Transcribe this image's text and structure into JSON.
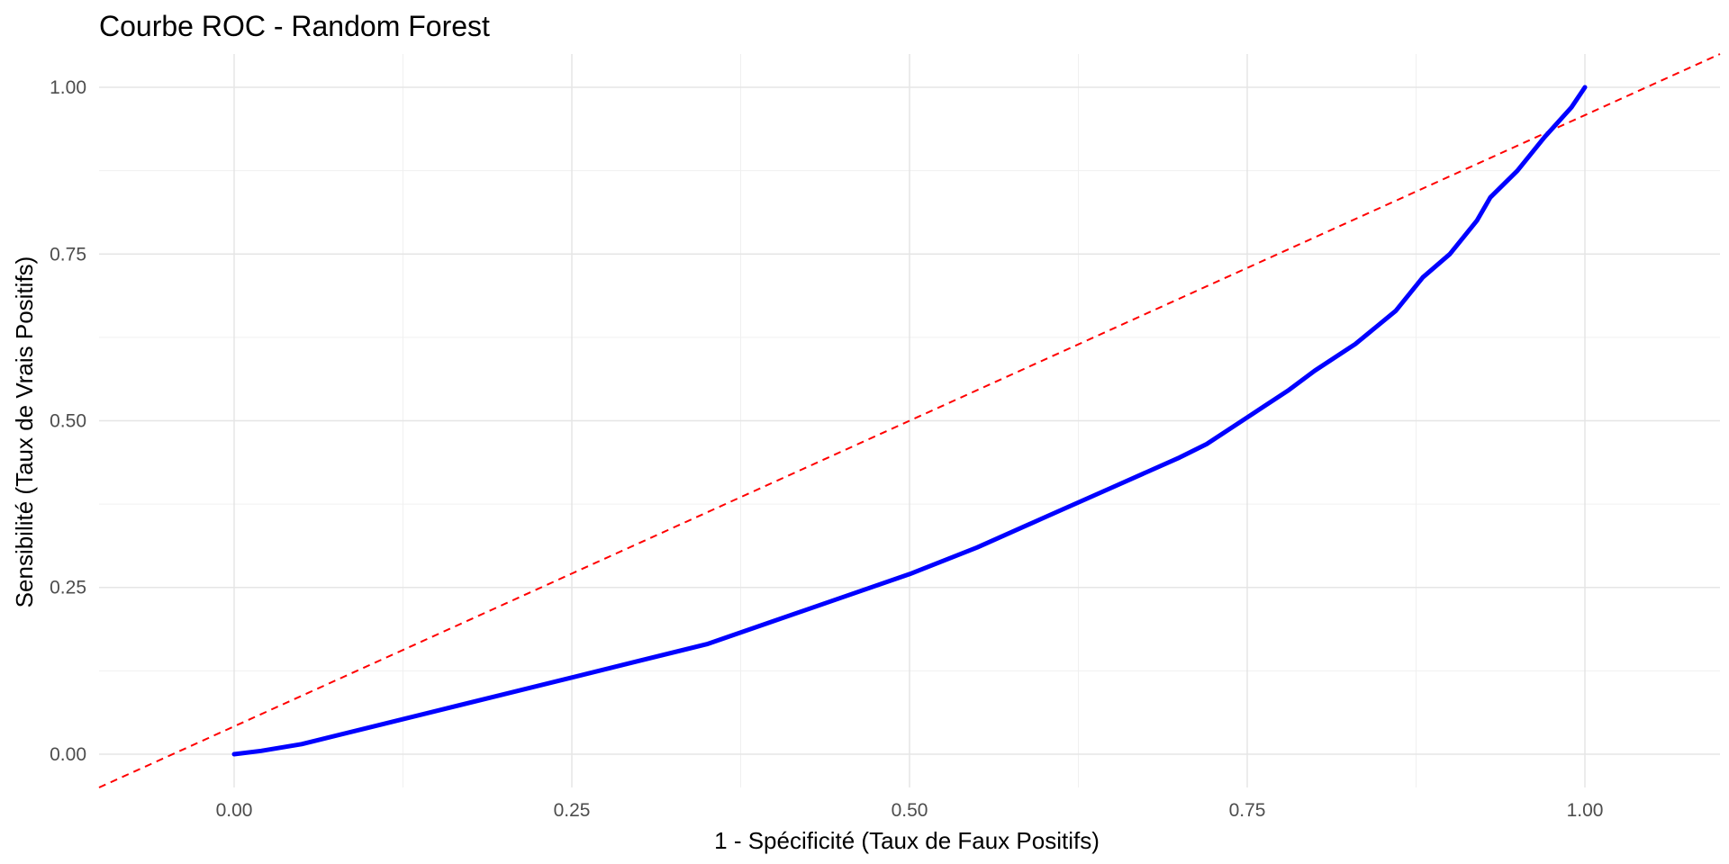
{
  "chart_data": {
    "type": "line",
    "title": "Courbe ROC - Random Forest",
    "xlabel": "1 - Spécificité (Taux de Faux Positifs)",
    "ylabel": "Sensibilité (Taux de Vrais Positifs)",
    "xlim": [
      -0.1,
      1.1
    ],
    "ylim": [
      -0.05,
      1.05
    ],
    "x_ticks": [
      0.0,
      0.25,
      0.5,
      0.75,
      1.0
    ],
    "x_tick_labels": [
      "0.00",
      "0.25",
      "0.50",
      "0.75",
      "1.00"
    ],
    "y_ticks": [
      0.0,
      0.25,
      0.5,
      0.75,
      1.0
    ],
    "y_tick_labels": [
      "0.00",
      "0.25",
      "0.50",
      "0.75",
      "1.00"
    ],
    "grid": true,
    "series": [
      {
        "color": "#0000ff",
        "style": "solid",
        "x": [
          0.0,
          0.02,
          0.05,
          0.1,
          0.15,
          0.2,
          0.25,
          0.3,
          0.35,
          0.4,
          0.45,
          0.5,
          0.55,
          0.6,
          0.65,
          0.7,
          0.72,
          0.75,
          0.78,
          0.8,
          0.83,
          0.86,
          0.88,
          0.9,
          0.92,
          0.93,
          0.95,
          0.97,
          0.99,
          1.0
        ],
        "y": [
          0.0,
          0.005,
          0.015,
          0.04,
          0.065,
          0.09,
          0.115,
          0.14,
          0.165,
          0.2,
          0.235,
          0.27,
          0.31,
          0.355,
          0.4,
          0.445,
          0.465,
          0.505,
          0.545,
          0.575,
          0.615,
          0.665,
          0.715,
          0.75,
          0.8,
          0.835,
          0.875,
          0.925,
          0.97,
          1.0
        ]
      },
      {
        "color": "#ff0000",
        "style": "dashed",
        "x": [
          -0.1,
          1.1
        ],
        "y": [
          -0.05,
          1.05
        ]
      }
    ]
  }
}
